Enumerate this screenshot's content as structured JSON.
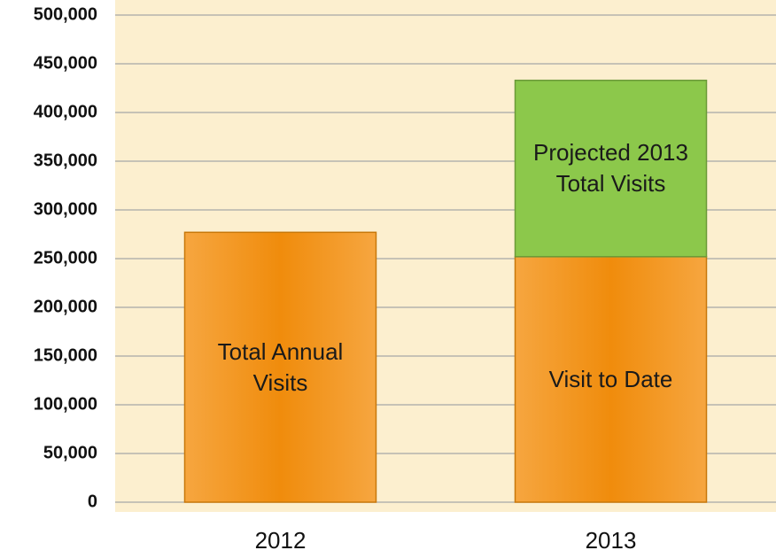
{
  "chart_data": {
    "type": "stacked-bar",
    "categories": [
      "2012",
      "2013"
    ],
    "series": [
      {
        "color": "#f08c0c",
        "values": [
          277000,
          252000
        ],
        "labels": [
          "Total Annual Visits",
          "Visit to Date"
        ]
      },
      {
        "color": "#8cc84b",
        "values": [
          null,
          181000
        ],
        "labels": [
          null,
          "Projected 2013 Total Visits"
        ]
      }
    ],
    "ylim": [
      0,
      500000
    ],
    "yticks": [
      0,
      {
        "value": 50000,
        "label": "50,000"
      },
      {
        "value": 100000,
        "label": "100,000"
      },
      {
        "value": 150000,
        "label": "150,000"
      },
      {
        "value": 200000,
        "label": "200,000"
      },
      {
        "value": 250000,
        "label": "250,000"
      },
      {
        "value": 300000,
        "label": "300,000"
      },
      {
        "value": 350000,
        "label": "350,000"
      },
      {
        "value": 400000,
        "label": "400,000"
      },
      {
        "value": 450000,
        "label": "450,000"
      },
      {
        "value": 500000,
        "label": "500,000"
      }
    ],
    "grid": true
  }
}
